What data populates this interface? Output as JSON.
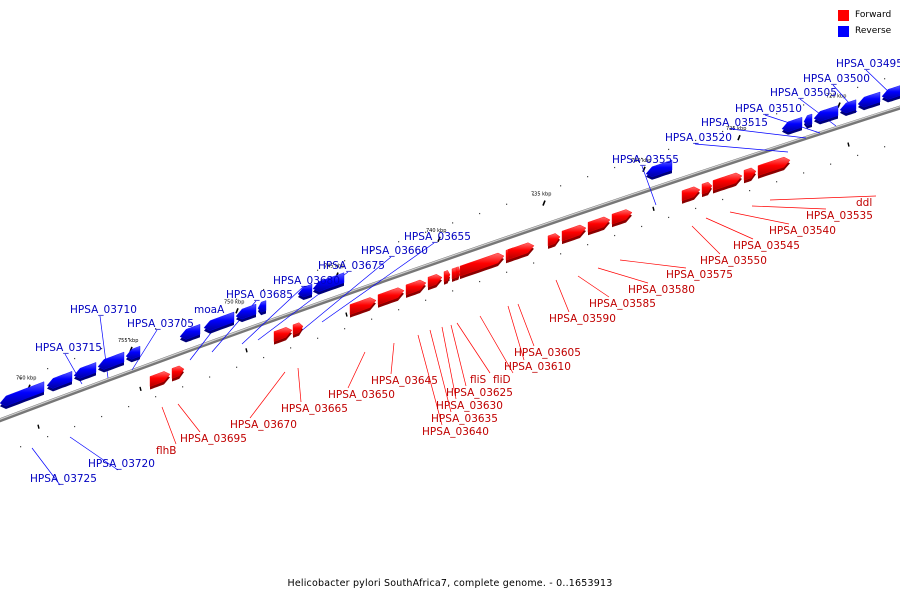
{
  "legend": {
    "forward": {
      "label": "Forward",
      "color": "#ff0000"
    },
    "reverse": {
      "label": "Reverse",
      "color": "#0000ff"
    }
  },
  "caption": "Helicobacter pylori SouthAfrica7, complete genome. - 0..1653913",
  "ticks": [
    {
      "label": "760 kbp",
      "kbp": 760
    },
    {
      "label": "755 kbp",
      "kbp": 755
    },
    {
      "label": "750 kbp",
      "kbp": 750
    },
    {
      "label": "745 kbp",
      "kbp": 745
    },
    {
      "label": "740 kbp",
      "kbp": 740
    },
    {
      "label": "735 kbp",
      "kbp": 735
    },
    {
      "label": "730 kbp",
      "kbp": 730
    },
    {
      "label": "725 kbp",
      "kbp": 725
    },
    {
      "label": "720 kbp",
      "kbp": 720
    }
  ],
  "genes": [
    {
      "name": "HPSA_03725",
      "strand": "reverse"
    },
    {
      "name": "HPSA_03720",
      "strand": "reverse"
    },
    {
      "name": "HPSA_03715",
      "strand": "reverse"
    },
    {
      "name": "HPSA_03710",
      "strand": "reverse"
    },
    {
      "name": "HPSA_03705",
      "strand": "reverse"
    },
    {
      "name": "flhB",
      "strand": "forward"
    },
    {
      "name": "HPSA_03695",
      "strand": "forward"
    },
    {
      "name": "moaA",
      "strand": "reverse"
    },
    {
      "name": "HPSA_03685",
      "strand": "reverse"
    },
    {
      "name": "HPSA_03680",
      "strand": "reverse"
    },
    {
      "name": "HPSA_03675",
      "strand": "reverse"
    },
    {
      "name": "HPSA_03670",
      "strand": "forward"
    },
    {
      "name": "HPSA_03665",
      "strand": "forward"
    },
    {
      "name": "HPSA_03660",
      "strand": "reverse"
    },
    {
      "name": "HPSA_03655",
      "strand": "reverse"
    },
    {
      "name": "HPSA_03650",
      "strand": "forward"
    },
    {
      "name": "HPSA_03645",
      "strand": "forward"
    },
    {
      "name": "HPSA_03640",
      "strand": "forward"
    },
    {
      "name": "HPSA_03635",
      "strand": "forward"
    },
    {
      "name": "HPSA_03630",
      "strand": "forward"
    },
    {
      "name": "HPSA_03625",
      "strand": "forward"
    },
    {
      "name": "fliS",
      "strand": "forward"
    },
    {
      "name": "fliD",
      "strand": "forward"
    },
    {
      "name": "HPSA_03610",
      "strand": "forward"
    },
    {
      "name": "HPSA_03605",
      "strand": "forward"
    },
    {
      "name": "HPSA_03590",
      "strand": "forward"
    },
    {
      "name": "HPSA_03585",
      "strand": "forward"
    },
    {
      "name": "HPSA_03580",
      "strand": "forward"
    },
    {
      "name": "HPSA_03575",
      "strand": "forward"
    },
    {
      "name": "HPSA_03555",
      "strand": "reverse"
    },
    {
      "name": "HPSA_03550",
      "strand": "forward"
    },
    {
      "name": "HPSA_03545",
      "strand": "forward"
    },
    {
      "name": "HPSA_03540",
      "strand": "forward"
    },
    {
      "name": "HPSA_03535",
      "strand": "forward"
    },
    {
      "name": "ddl",
      "strand": "forward"
    },
    {
      "name": "HPSA_03520",
      "strand": "reverse"
    },
    {
      "name": "HPSA_03515",
      "strand": "reverse"
    },
    {
      "name": "HPSA_03510",
      "strand": "reverse"
    },
    {
      "name": "HPSA_03505",
      "strand": "reverse"
    },
    {
      "name": "HPSA_03500",
      "strand": "reverse"
    },
    {
      "name": "HPSA_03495",
      "strand": "reverse"
    }
  ]
}
